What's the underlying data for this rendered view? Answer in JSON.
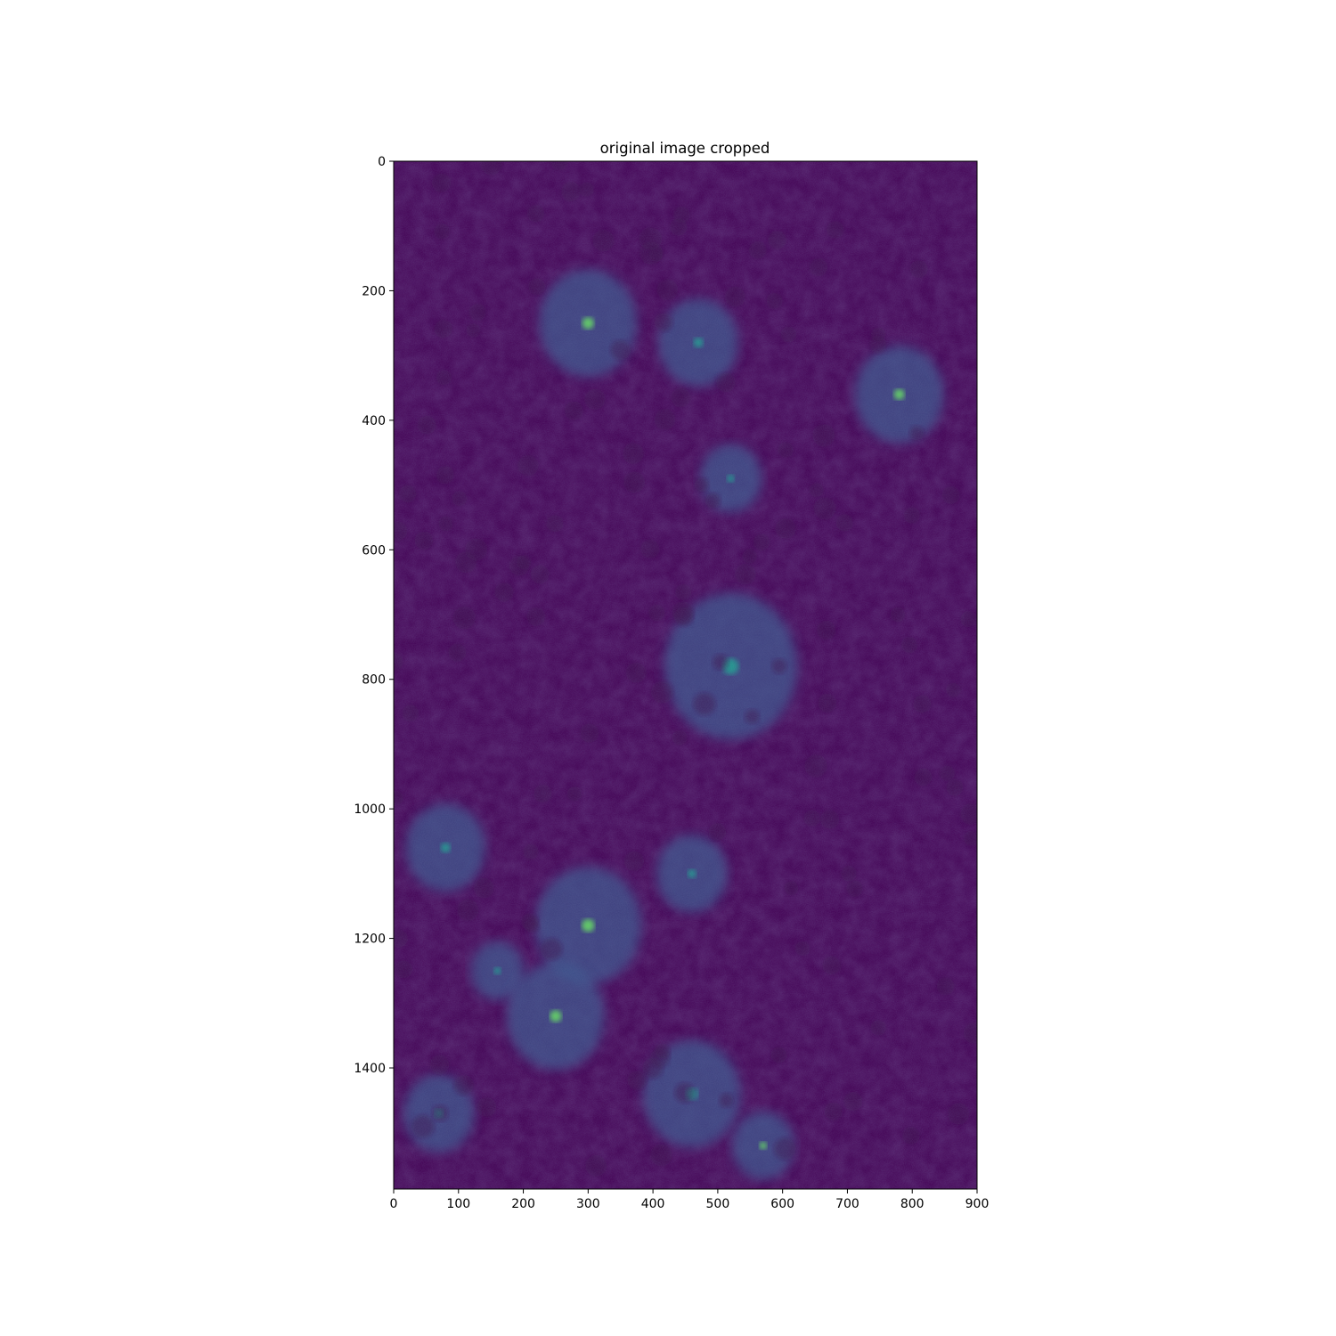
{
  "figure": {
    "title": "original image cropped"
  },
  "colors": {
    "background": "#440154",
    "blob": "#3b528b",
    "bright": "#21918c",
    "hot": "#5ec962",
    "colormap": "viridis"
  },
  "axes": {
    "x_ticks": [
      "0",
      "100",
      "200",
      "300",
      "400",
      "500",
      "600",
      "700",
      "800",
      "900"
    ],
    "y_ticks": [
      "0",
      "200",
      "400",
      "600",
      "800",
      "1000",
      "1200",
      "1400"
    ]
  },
  "chart_data": {
    "type": "heatmap",
    "title": "original image cropped",
    "xlim": [
      0,
      900
    ],
    "ylim": [
      1587,
      0
    ],
    "x_ticks": [
      0,
      100,
      200,
      300,
      400,
      500,
      600,
      700,
      800,
      900
    ],
    "y_ticks": [
      0,
      200,
      400,
      600,
      800,
      1000,
      1200,
      1400
    ],
    "colormap": "viridis",
    "grid": false,
    "bright_regions": [
      {
        "x": 300,
        "y": 250
      },
      {
        "x": 470,
        "y": 280
      },
      {
        "x": 520,
        "y": 490
      },
      {
        "x": 780,
        "y": 360
      },
      {
        "x": 520,
        "y": 780
      },
      {
        "x": 80,
        "y": 1060
      },
      {
        "x": 300,
        "y": 1180
      },
      {
        "x": 460,
        "y": 1100
      },
      {
        "x": 160,
        "y": 1250
      },
      {
        "x": 250,
        "y": 1320
      },
      {
        "x": 460,
        "y": 1440
      },
      {
        "x": 70,
        "y": 1470
      },
      {
        "x": 570,
        "y": 1520
      }
    ]
  }
}
